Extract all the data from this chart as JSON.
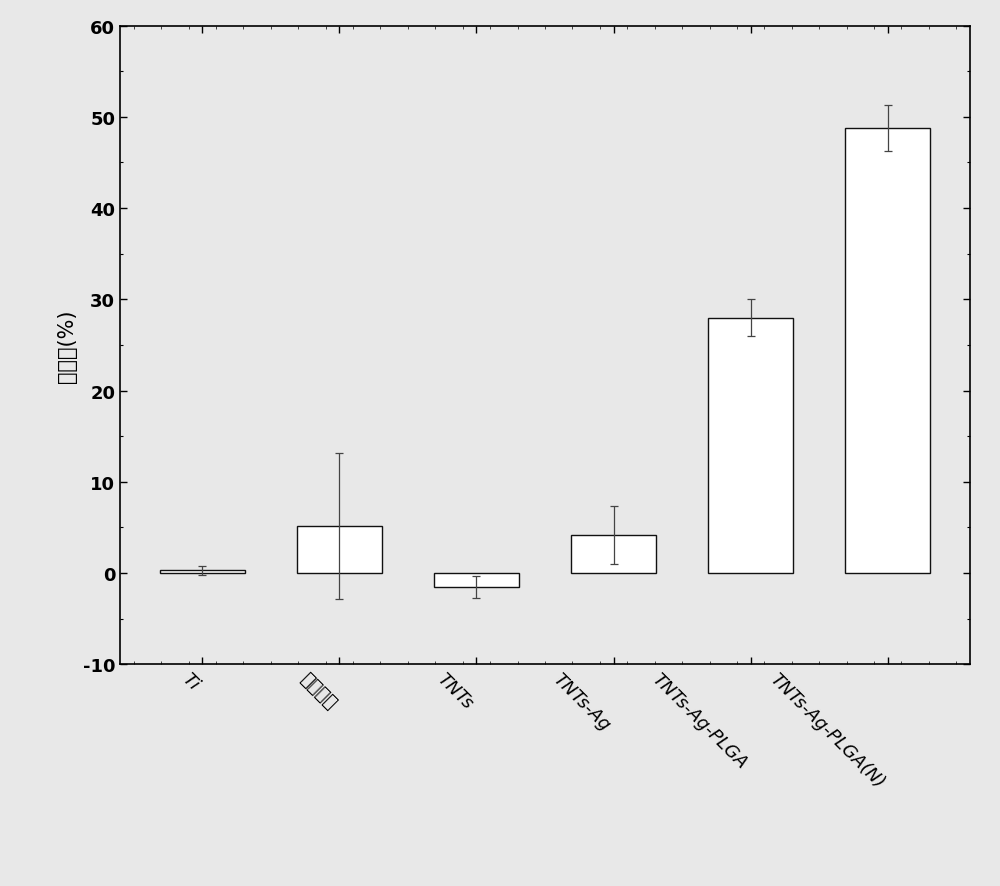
{
  "categories": [
    "Ti",
    "草酸浸泡",
    "TNTs",
    "TNTs-Ag",
    "TNTs-Ag-PLGA",
    "TNTs-Ag-PLGA(N)"
  ],
  "values": [
    0.3,
    5.2,
    -1.5,
    4.2,
    28.0,
    48.8
  ],
  "errors": [
    0.5,
    8.0,
    1.2,
    3.2,
    2.0,
    2.5
  ],
  "bar_color": "#ffffff",
  "bar_edgecolor": "#111111",
  "bar_width": 0.62,
  "ylabel": "抑制率(%)",
  "ylim": [
    -10,
    60
  ],
  "yticks": [
    -10,
    0,
    10,
    20,
    30,
    40,
    50,
    60
  ],
  "background_color": "#e8e8e8",
  "figure_bg": "#e8e8e8",
  "ylabel_fontsize": 15,
  "tick_fontsize": 13,
  "xtick_rotation": -45,
  "error_capsize": 3,
  "error_color": "#444444",
  "linewidth": 1.0
}
